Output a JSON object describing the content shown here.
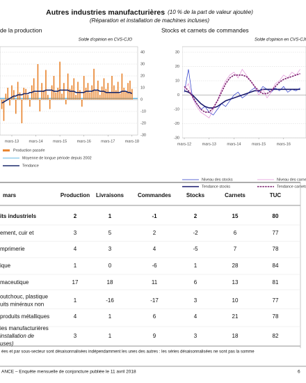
{
  "header": {
    "title": "Autres industries manufacturières",
    "title_note": "(10 % de la part de valeur ajoutée)",
    "subtitle": "(Réparation et installation de machines incluses)"
  },
  "chart_data": [
    {
      "type": "bar",
      "title": "de la production",
      "subtitle": "Solde d'opinion en CVS-CJO",
      "y_axis_side": "right",
      "grid": true,
      "categories": [
        null,
        null,
        null,
        null,
        null,
        "mars-13",
        null,
        null,
        null,
        null,
        null,
        null,
        null,
        null,
        null,
        null,
        null,
        "mars-14",
        null,
        null,
        null,
        null,
        null,
        null,
        null,
        null,
        null,
        null,
        null,
        "mars-15",
        null,
        null,
        null,
        null,
        null,
        null,
        null,
        null,
        null,
        null,
        null,
        "mars-16",
        null,
        null,
        null,
        null,
        null,
        null,
        null,
        null,
        null,
        null,
        null,
        "mars-17",
        null,
        null,
        null,
        null,
        null,
        null,
        null,
        null,
        null,
        null,
        null,
        "mars-18"
      ],
      "ylim": [
        -30,
        40
      ],
      "yticks": [
        -30,
        -20,
        -10,
        0,
        10,
        20,
        30,
        40
      ],
      "series": [
        {
          "name": "Production passée",
          "type": "bar",
          "color": "#e8822a",
          "values": [
            -8,
            -18,
            5,
            10,
            -5,
            12,
            8,
            -12,
            15,
            6,
            -20,
            10,
            9,
            4,
            -6,
            12,
            18,
            6,
            30,
            -10,
            14,
            8,
            25,
            4,
            -8,
            12,
            20,
            6,
            10,
            32,
            5,
            14,
            -4,
            22,
            9,
            12,
            18,
            4,
            15,
            8,
            -6,
            20,
            10,
            14,
            6,
            12,
            26,
            8,
            16,
            4,
            11,
            18,
            9,
            14,
            6,
            20,
            12,
            8,
            15,
            5,
            22,
            10,
            7,
            14,
            16,
            9
          ]
        },
        {
          "name": "Tendance",
          "type": "line",
          "color": "#1c2a6b",
          "values": [
            -3,
            -2,
            -1,
            0,
            1,
            2,
            3,
            3,
            4,
            4,
            4,
            5,
            5,
            5,
            6,
            6,
            7,
            7,
            7,
            7,
            7,
            7,
            8,
            8,
            8,
            8,
            7,
            7,
            7,
            8,
            8,
            8,
            8,
            8,
            7,
            7,
            7,
            6,
            6,
            6,
            6,
            6,
            7,
            7,
            7,
            7,
            8,
            8,
            8,
            7,
            7,
            7,
            6,
            6,
            6,
            6,
            6,
            6,
            6,
            6,
            7,
            7,
            7,
            6,
            6,
            5
          ]
        }
      ],
      "reference_lines": [
        {
          "name": "Moyenne de longue période depuis 2002",
          "color": "#2a9bd6",
          "value": 1
        }
      ]
    },
    {
      "type": "line",
      "title": "Stocks et carnets de commandes",
      "subtitle": "Solde d'opinion en CVS-CJO",
      "y_axis_side": "left",
      "grid": true,
      "categories": [
        "mars-12",
        null,
        null,
        null,
        null,
        null,
        "mars-13",
        null,
        null,
        null,
        null,
        null,
        "mars-14",
        null,
        null,
        null,
        null,
        null,
        "mars-15",
        null,
        null,
        null,
        null,
        null,
        "mars-16",
        null,
        null,
        null,
        null
      ],
      "ylim": [
        -30,
        30
      ],
      "yticks": [
        -30,
        -20,
        -10,
        0,
        10,
        20,
        30
      ],
      "series": [
        {
          "name": "Niveau des stocks",
          "type": "line",
          "color": "#2838c8",
          "values": [
            2,
            18,
            -2,
            -6,
            -10,
            -8,
            -12,
            -14,
            -10,
            -6,
            -8,
            -4,
            0,
            2,
            -2,
            0,
            3,
            5,
            2,
            6,
            4,
            2,
            5,
            3,
            6,
            2,
            4,
            3,
            5
          ]
        },
        {
          "name": "Tendance stocks",
          "type": "line",
          "color": "#1a1a6e",
          "values": [
            3,
            2,
            0,
            -3,
            -6,
            -8,
            -9,
            -9,
            -8,
            -6,
            -4,
            -3,
            -2,
            -1,
            0,
            1,
            2,
            3,
            3,
            4,
            4,
            4,
            4,
            4,
            4,
            4,
            4,
            4,
            4
          ]
        },
        {
          "name": "Niveau des carnets",
          "type": "line",
          "color": "#e08fd6",
          "values": [
            4,
            8,
            -2,
            -8,
            -12,
            -14,
            -16,
            -10,
            -4,
            4,
            10,
            14,
            16,
            12,
            18,
            14,
            10,
            6,
            0,
            4,
            -2,
            2,
            8,
            10,
            14,
            12,
            16,
            14,
            18
          ]
        },
        {
          "name": "Tendance carnets",
          "type": "line",
          "color": "#7a1f6e",
          "dashed": true,
          "values": [
            6,
            3,
            -1,
            -6,
            -10,
            -12,
            -12,
            -9,
            -4,
            2,
            8,
            12,
            14,
            14,
            14,
            13,
            10,
            6,
            3,
            1,
            1,
            3,
            6,
            9,
            11,
            12,
            13,
            14,
            15
          ]
        }
      ]
    }
  ],
  "table": {
    "header_label": "mars",
    "columns": [
      "Production",
      "Livraisons",
      "Commandes",
      "Stocks",
      "Carnets",
      "TUC"
    ],
    "rows": [
      {
        "label": [
          "its industriels"
        ],
        "values": [
          "2",
          "1",
          "-1",
          "2",
          "15",
          "80"
        ]
      },
      {
        "label": [
          "ement, cuir et"
        ],
        "values": [
          "3",
          "5",
          "2",
          "-2",
          "6",
          "77"
        ]
      },
      {
        "label": [
          "mprimerie"
        ],
        "values": [
          "4",
          "3",
          "4",
          "-5",
          "7",
          "78"
        ]
      },
      {
        "label": [
          "ique"
        ],
        "values": [
          "1",
          "0",
          "-6",
          "1",
          "28",
          "84"
        ]
      },
      {
        "label": [
          "maceutique"
        ],
        "values": [
          "17",
          "18",
          "11",
          "6",
          "13",
          "81"
        ]
      },
      {
        "label": [
          "outchouc, plastique",
          "uits minéraux non"
        ],
        "values": [
          "1",
          "-16",
          "-17",
          "3",
          "10",
          "77"
        ]
      },
      {
        "label": [
          "produits métalliques"
        ],
        "values": [
          "4",
          "1",
          "6",
          "4",
          "21",
          "78"
        ]
      },
      {
        "label": [
          "ies manufacturières",
          "installation de",
          "uses)"
        ],
        "values": [
          "3",
          "1",
          "9",
          "3",
          "18",
          "82"
        ]
      }
    ]
  },
  "footnote": "ées et par sous-secteur sont désaisonnalisées indépendamment les unes des autres : les séries désaisonnalisées ne sont pas la somme",
  "footer": {
    "text": "ANCE –  Enquête mensuelle de conjoncture publiée le 11 avril 2018",
    "page": "6"
  }
}
